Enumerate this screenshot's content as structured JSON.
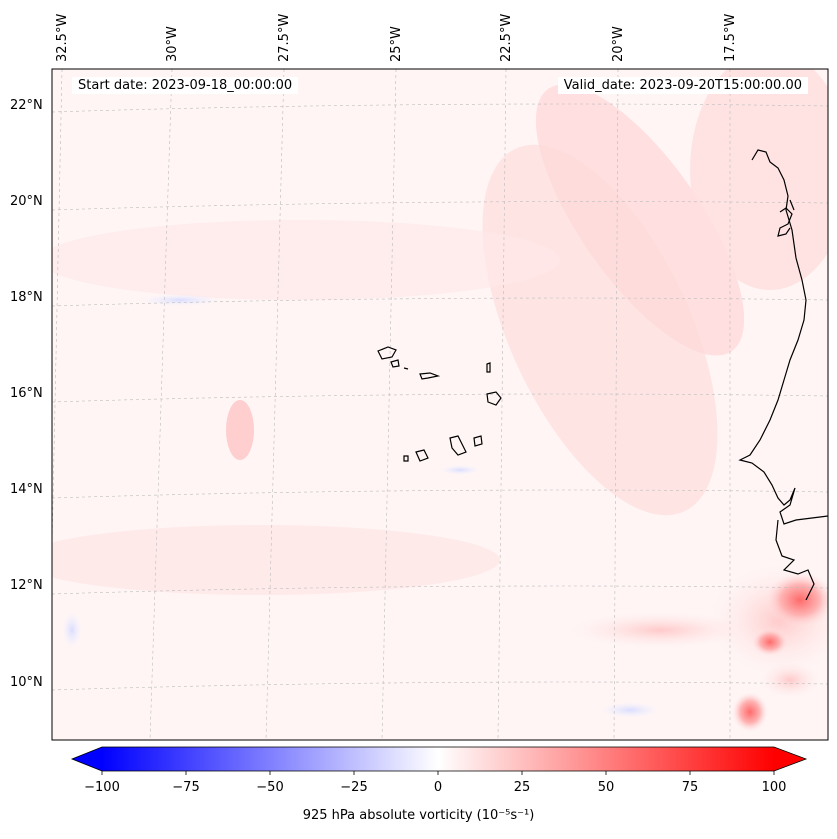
{
  "header": {
    "start_date": "Start date: 2023-09-18_00:00:00",
    "valid_date": "Valid_date: 2023-09-20T15:00:00.00"
  },
  "map": {
    "lon_labels": [
      "32.5°W",
      "30°W",
      "27.5°W",
      "25°W",
      "22.5°W",
      "20°W",
      "17.5°W"
    ],
    "lat_labels": [
      "22°N",
      "20°N",
      "18°N",
      "16°N",
      "14°N",
      "12°N",
      "10°N"
    ]
  },
  "colorbar": {
    "ticks": [
      "−100",
      "−75",
      "−50",
      "−25",
      "0",
      "25",
      "50",
      "75",
      "100"
    ],
    "title": "925 hPa absolute vorticity (10⁻⁵s⁻¹)",
    "min_color": "#0000ff",
    "mid_color": "#ffffff",
    "max_color": "#ff0000"
  }
}
